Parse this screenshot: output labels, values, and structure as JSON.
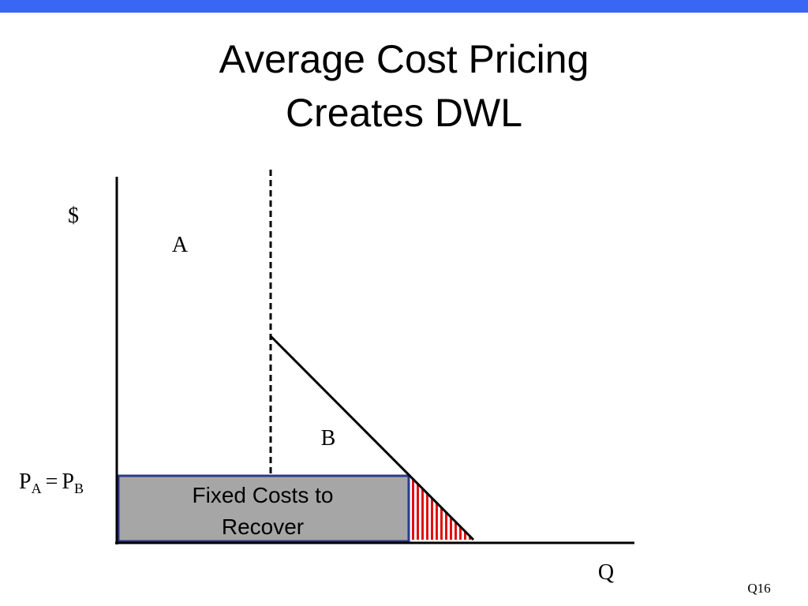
{
  "header": {
    "title_lines": [
      "Average Cost Pricing",
      "Creates DWL"
    ]
  },
  "diagram": {
    "y_axis_label": "$",
    "x_axis_label": "Q",
    "region_labels": [
      "A",
      "B"
    ],
    "price_label": {
      "p1": "P",
      "sub1": "A",
      "equals": "=",
      "p2": "P",
      "sub2": "B"
    },
    "box_label_lines": [
      "Fixed Costs to",
      "Recover"
    ]
  },
  "footer": {
    "slide_number": "Q16"
  }
}
